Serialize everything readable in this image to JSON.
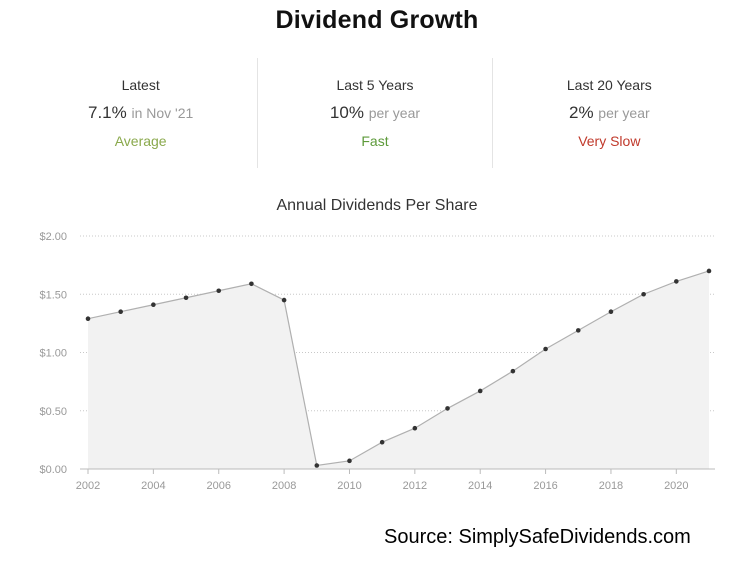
{
  "header": {
    "title": "Dividend Growth"
  },
  "stats": [
    {
      "label": "Latest",
      "value": "7.1%",
      "sub": "in Nov '21",
      "rating": "Average",
      "rating_color": "#8aa94c"
    },
    {
      "label": "Last 5 Years",
      "value": "10%",
      "sub": "per year",
      "rating": "Fast",
      "rating_color": "#5d9a3a"
    },
    {
      "label": "Last 20 Years",
      "value": "2%",
      "sub": "per year",
      "rating": "Very Slow",
      "rating_color": "#c0392b"
    }
  ],
  "chart_data": {
    "type": "area",
    "title": "Annual Dividends Per Share",
    "x": [
      2002,
      2003,
      2004,
      2005,
      2006,
      2007,
      2008,
      2009,
      2010,
      2011,
      2012,
      2013,
      2014,
      2015,
      2016,
      2017,
      2018,
      2019,
      2020,
      2021
    ],
    "values": [
      1.29,
      1.35,
      1.41,
      1.47,
      1.53,
      1.59,
      1.45,
      0.03,
      0.07,
      0.23,
      0.35,
      0.52,
      0.67,
      0.84,
      1.03,
      1.19,
      1.35,
      1.5,
      1.61,
      1.7
    ],
    "x_ticks": [
      "2002",
      "2004",
      "2006",
      "2008",
      "2010",
      "2012",
      "2014",
      "2016",
      "2018",
      "2020"
    ],
    "y_ticks": [
      "$0.00",
      "$0.50",
      "$1.00",
      "$1.50",
      "$2.00"
    ],
    "ylim": [
      0,
      2
    ],
    "xlim": [
      2002,
      2021
    ],
    "grid": true,
    "line_color": "#b0b0b0",
    "fill_color": "#f2f2f2",
    "point_color": "#333333"
  },
  "footer": {
    "source": "Source: SimplySafeDividends.com"
  }
}
